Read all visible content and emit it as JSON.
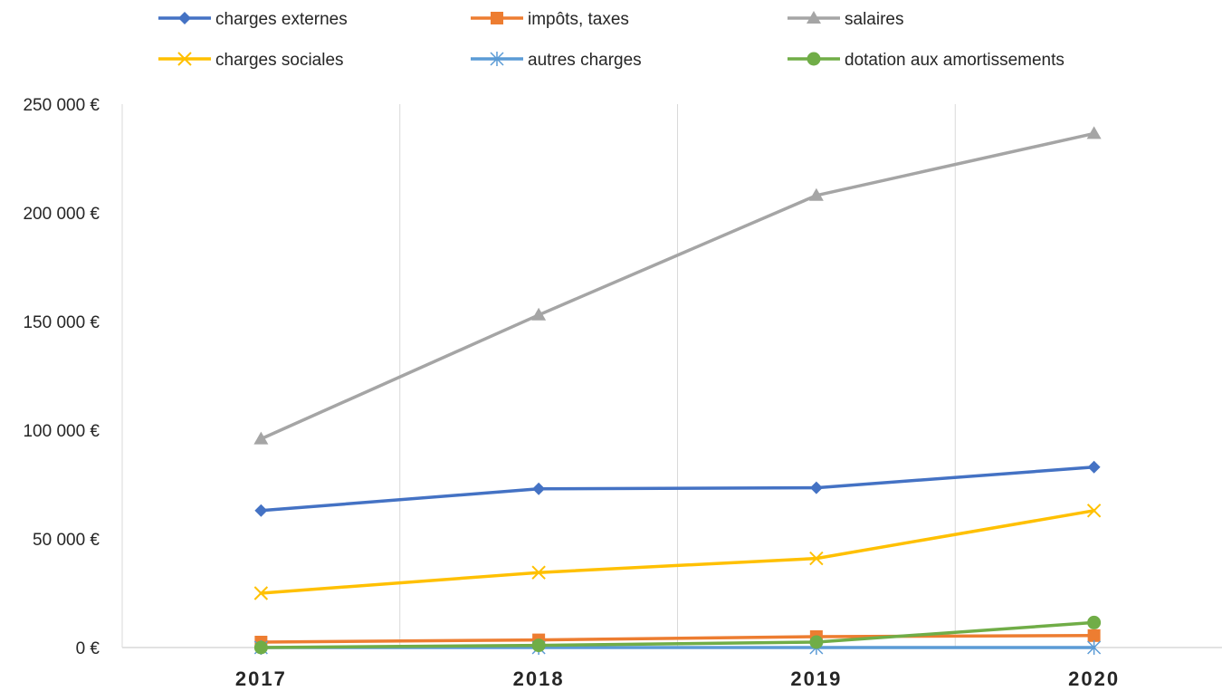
{
  "chart_data": {
    "type": "line",
    "title": "",
    "xlabel": "",
    "ylabel": "",
    "categories": [
      "2017",
      "2018",
      "2019",
      "2020"
    ],
    "ylim": [
      0,
      250000
    ],
    "yticks": [
      0,
      50000,
      100000,
      150000,
      200000,
      250000
    ],
    "ytick_labels": [
      "0 €",
      "50 000 €",
      "100 000 €",
      "150 000 €",
      "200 000 €",
      "250 000 €"
    ],
    "grid": "vertical",
    "legend_position": "top",
    "series": [
      {
        "name": "charges externes",
        "color": "#4472C4",
        "marker": "diamond",
        "values": [
          63000,
          73000,
          73500,
          83000
        ]
      },
      {
        "name": "impôts, taxes",
        "color": "#ED7D31",
        "marker": "square",
        "values": [
          2500,
          3500,
          5000,
          5500
        ]
      },
      {
        "name": "salaires",
        "color": "#A5A5A5",
        "marker": "triangle",
        "values": [
          96000,
          153000,
          208000,
          236500
        ]
      },
      {
        "name": "charges sociales",
        "color": "#FFC000",
        "marker": "x",
        "values": [
          25000,
          34500,
          41000,
          63000
        ]
      },
      {
        "name": "autres charges",
        "color": "#5B9BD5",
        "marker": "star",
        "values": [
          0,
          0,
          0,
          0
        ]
      },
      {
        "name": "dotation aux amortissements",
        "color": "#70AD47",
        "marker": "circle",
        "values": [
          0,
          1000,
          2500,
          11500
        ]
      }
    ]
  }
}
